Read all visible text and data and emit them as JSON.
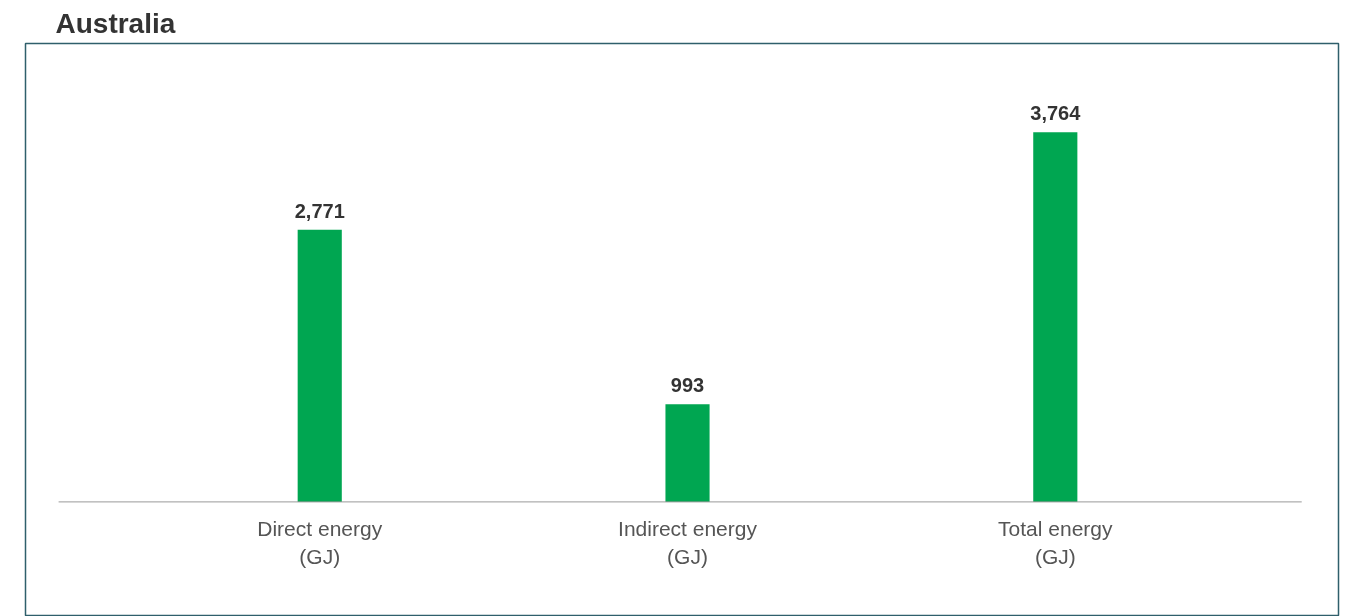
{
  "chart_data": {
    "type": "bar",
    "title": "Australia",
    "categories": [
      "Direct energy\n(GJ)",
      "Indirect energy\n(GJ)",
      "Total energy\n(GJ)"
    ],
    "values": [
      2771,
      993,
      3764
    ],
    "color": "#00a651",
    "value_labels": [
      "2,771",
      "993",
      "3,764"
    ]
  }
}
